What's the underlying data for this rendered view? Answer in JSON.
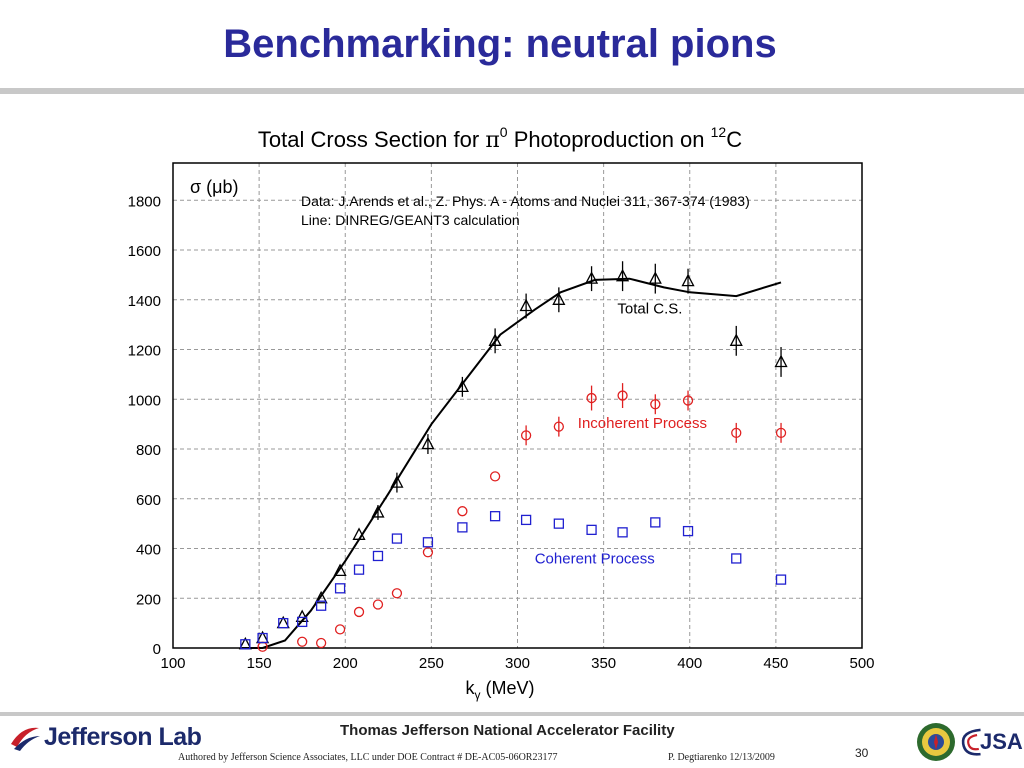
{
  "slide": {
    "title": "Benchmarking: neutral pions"
  },
  "chart_data": {
    "type": "scatter",
    "title": "Total Cross Section for π⁰ Photoproduction on ¹²C",
    "title_main": "Total Cross Section for ",
    "title_pi": "π",
    "title_pi_sup": "0",
    "title_mid": " Photoproduction on ",
    "title_nucleus_sup": "12",
    "title_nucleus": "C",
    "ylabel": "σ (μb)",
    "xlabel_base": "k",
    "xlabel_sub": "γ",
    "xlabel_unit": " (MeV)",
    "xlim": [
      100,
      500
    ],
    "ylim": [
      0,
      1950
    ],
    "xticks": [
      100,
      150,
      200,
      250,
      300,
      350,
      400,
      450,
      500
    ],
    "yticks": [
      0,
      200,
      400,
      600,
      800,
      1000,
      1200,
      1400,
      1600,
      1800
    ],
    "grid": true,
    "annotations": {
      "data_line1": "Data: J.Arends et al., Z. Phys. A - Atoms and Nuclei 311, 367-374 (1983)",
      "data_line2": "Line: DINREG/GEANT3 calculation"
    },
    "series": [
      {
        "name": "Total C.S.",
        "marker": "triangle",
        "color": "#000000",
        "label_pos": [
          358,
          1345
        ],
        "points": [
          [
            142,
            15,
            0
          ],
          [
            152,
            40,
            0
          ],
          [
            164,
            100,
            0
          ],
          [
            175,
            125,
            0
          ],
          [
            186,
            200,
            0
          ],
          [
            197,
            310,
            0
          ],
          [
            208,
            455,
            0
          ],
          [
            219,
            545,
            30
          ],
          [
            230,
            665,
            40
          ],
          [
            248,
            820,
            40
          ],
          [
            268,
            1050,
            40
          ],
          [
            287,
            1235,
            50
          ],
          [
            305,
            1375,
            50
          ],
          [
            324,
            1400,
            50
          ],
          [
            343,
            1485,
            50
          ],
          [
            361,
            1495,
            60
          ],
          [
            380,
            1485,
            60
          ],
          [
            399,
            1475,
            50
          ],
          [
            427,
            1235,
            60
          ],
          [
            453,
            1150,
            60
          ]
        ]
      },
      {
        "name": "Incoherent Process",
        "marker": "circle",
        "color": "#e02020",
        "label_pos": [
          335,
          885
        ],
        "points": [
          [
            152,
            5,
            0
          ],
          [
            175,
            25,
            0
          ],
          [
            186,
            20,
            0
          ],
          [
            197,
            75,
            0
          ],
          [
            208,
            145,
            0
          ],
          [
            219,
            175,
            0
          ],
          [
            230,
            220,
            0
          ],
          [
            248,
            385,
            0
          ],
          [
            268,
            550,
            0
          ],
          [
            287,
            690,
            0
          ],
          [
            305,
            855,
            40
          ],
          [
            324,
            890,
            40
          ],
          [
            343,
            1005,
            50
          ],
          [
            361,
            1015,
            50
          ],
          [
            380,
            980,
            40
          ],
          [
            399,
            995,
            40
          ],
          [
            427,
            865,
            40
          ],
          [
            453,
            865,
            40
          ]
        ]
      },
      {
        "name": "Coherent Process",
        "marker": "square",
        "color": "#2020d0",
        "label_pos": [
          310,
          340
        ],
        "points": [
          [
            142,
            15,
            0
          ],
          [
            152,
            40,
            0
          ],
          [
            164,
            100,
            0
          ],
          [
            175,
            105,
            0
          ],
          [
            186,
            170,
            0
          ],
          [
            197,
            240,
            0
          ],
          [
            208,
            315,
            0
          ],
          [
            219,
            370,
            0
          ],
          [
            230,
            440,
            0
          ],
          [
            248,
            425,
            0
          ],
          [
            268,
            485,
            0
          ],
          [
            287,
            530,
            0
          ],
          [
            305,
            515,
            0
          ],
          [
            324,
            500,
            0
          ],
          [
            343,
            475,
            0
          ],
          [
            361,
            465,
            0
          ],
          [
            380,
            505,
            0
          ],
          [
            399,
            470,
            0
          ],
          [
            427,
            360,
            0
          ],
          [
            453,
            275,
            0
          ]
        ]
      }
    ],
    "line": {
      "name": "DINREG/GEANT3 calculation",
      "color": "#000000",
      "points": [
        [
          140,
          0
        ],
        [
          152,
          0
        ],
        [
          165,
          30
        ],
        [
          180,
          150
        ],
        [
          200,
          350
        ],
        [
          225,
          620
        ],
        [
          250,
          900
        ],
        [
          270,
          1080
        ],
        [
          290,
          1260
        ],
        [
          310,
          1360
        ],
        [
          325,
          1430
        ],
        [
          345,
          1480
        ],
        [
          365,
          1485
        ],
        [
          385,
          1450
        ],
        [
          400,
          1430
        ],
        [
          427,
          1415
        ],
        [
          453,
          1470
        ]
      ]
    }
  },
  "footer": {
    "lab_name": "Jefferson Lab",
    "facility": "Thomas Jefferson National Accelerator Facility",
    "authored": "Authored by Jefferson Science Associates, LLC under DOE Contract #  DE-AC05-06OR23177",
    "author_date": "P. Degtiarenko 12/13/2009",
    "page_number": "30",
    "partner_logo": "JSA"
  }
}
